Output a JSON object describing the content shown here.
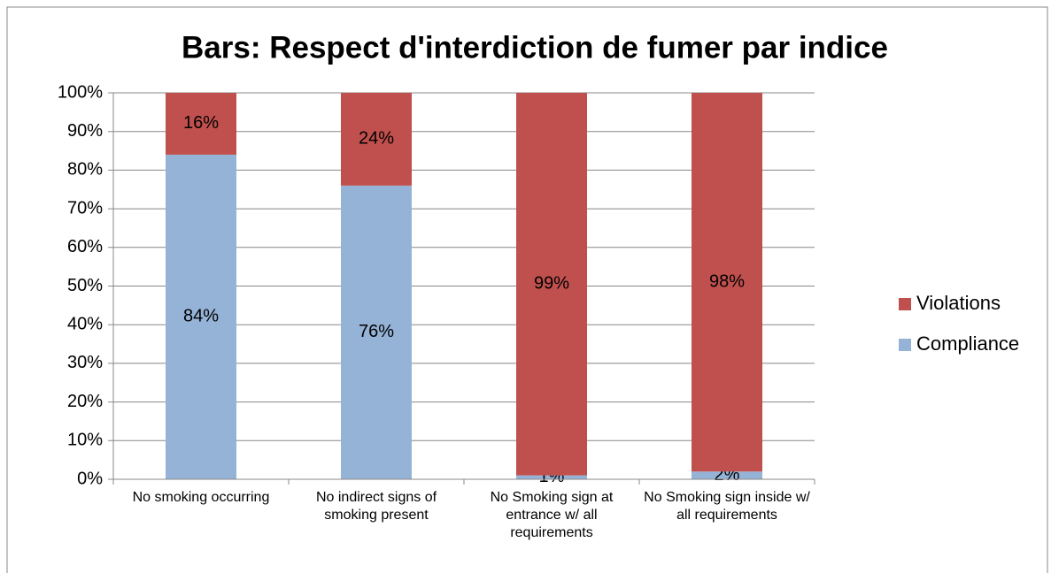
{
  "chart_data": {
    "type": "stacked_bar",
    "title": "Bars: Respect d'interdiction de fumer par indice",
    "categories": [
      "No smoking occurring",
      "No indirect signs of smoking present",
      "No Smoking sign at entrance w/ all requirements",
      "No Smoking sign inside w/ all requirements"
    ],
    "series": [
      {
        "name": "Compliance",
        "color": "#95b3d7",
        "values": [
          84,
          76,
          1,
          2
        ],
        "value_labels": [
          "84%",
          "76%",
          "1%",
          "2%"
        ]
      },
      {
        "name": "Violations",
        "color": "#c0504d",
        "values": [
          16,
          24,
          99,
          98
        ],
        "value_labels": [
          "16%",
          "24%",
          "99%",
          "98%"
        ]
      }
    ],
    "ylim": [
      0,
      100
    ],
    "yticks": [
      {
        "value": 0,
        "label": "0%"
      },
      {
        "value": 10,
        "label": "10%"
      },
      {
        "value": 20,
        "label": "20%"
      },
      {
        "value": 30,
        "label": "30%"
      },
      {
        "value": 40,
        "label": "40%"
      },
      {
        "value": 50,
        "label": "50%"
      },
      {
        "value": 60,
        "label": "60%"
      },
      {
        "value": 70,
        "label": "70%"
      },
      {
        "value": 80,
        "label": "80%"
      },
      {
        "value": 90,
        "label": "90%"
      },
      {
        "value": 100,
        "label": "100%"
      }
    ],
    "grid": true,
    "legend": "right"
  }
}
